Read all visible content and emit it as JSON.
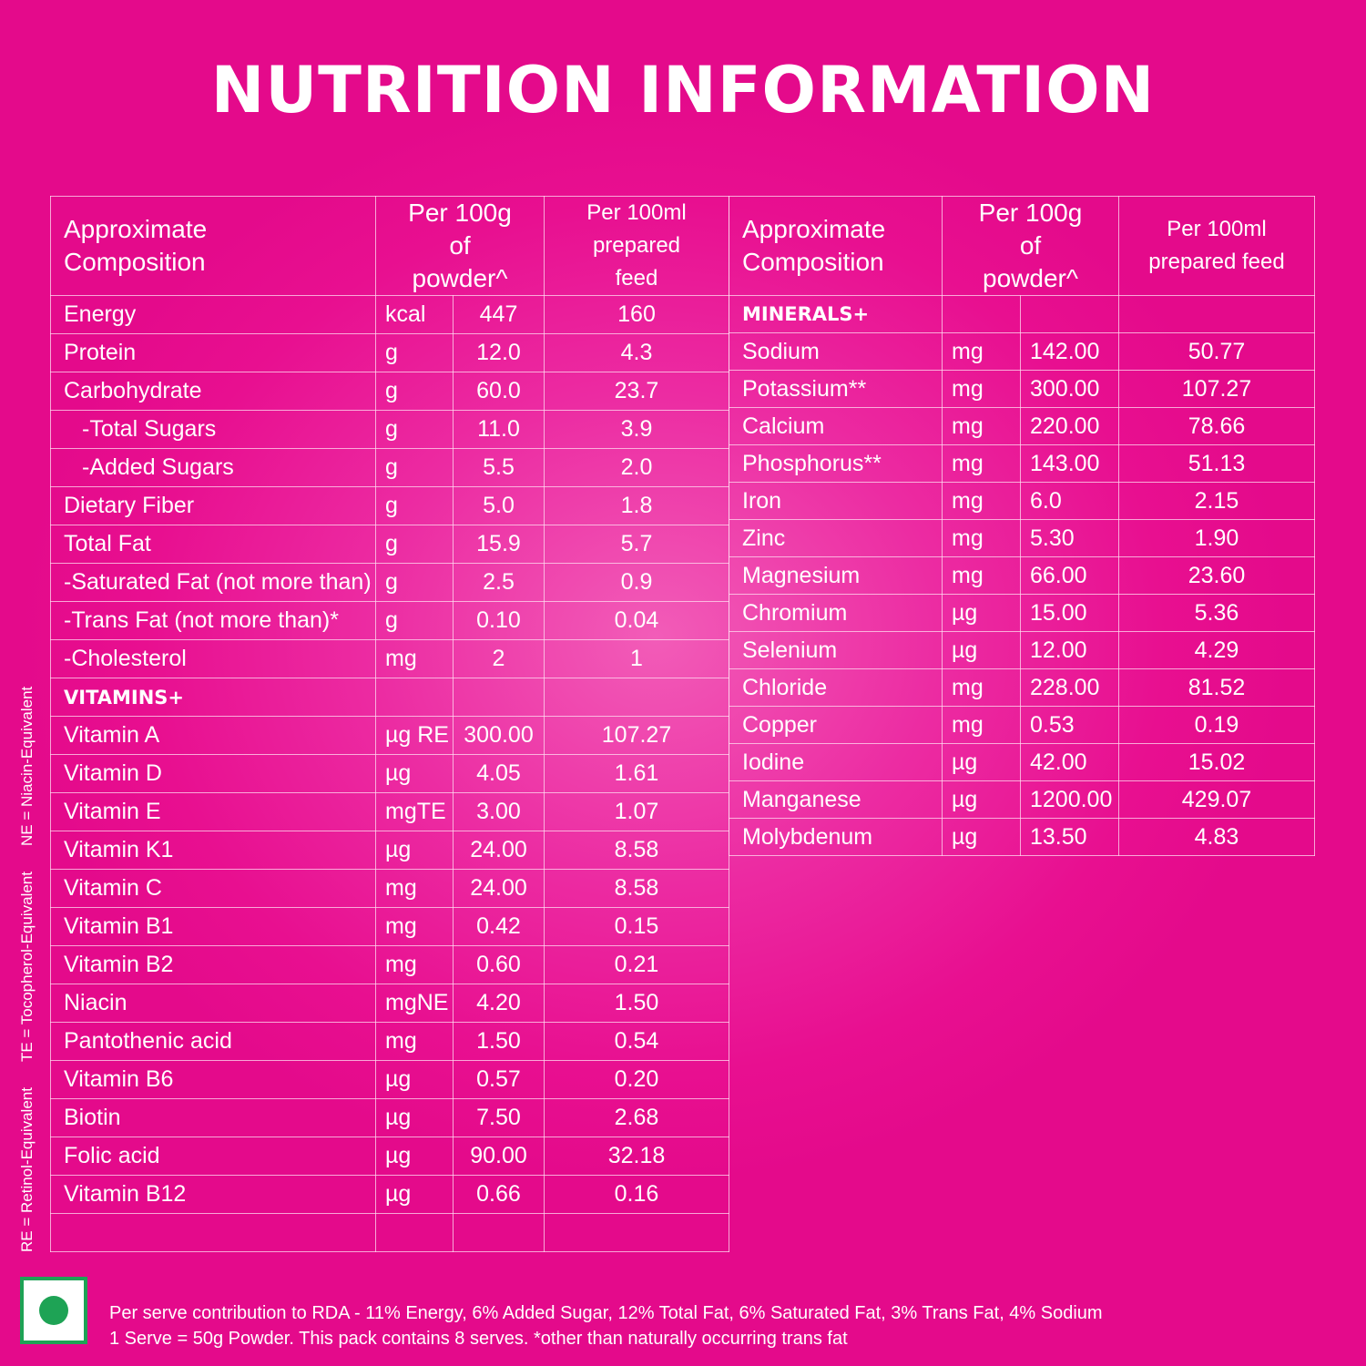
{
  "title": "NUTRITION INFORMATION",
  "headers": {
    "composition": "Approximate Composition",
    "per100g": "Per 100g of powder^",
    "per100ml": "Per 100ml prepared feed"
  },
  "left_rows": [
    {
      "name": "Energy",
      "unit": "kcal",
      "per100g": "447",
      "per100ml": "160"
    },
    {
      "name": "Protein",
      "unit": "g",
      "per100g": "12.0",
      "per100ml": "4.3"
    },
    {
      "name": "Carbohydrate",
      "unit": "g",
      "per100g": "60.0",
      "per100ml": "23.7"
    },
    {
      "name": "-Total Sugars",
      "unit": "g",
      "per100g": "11.0",
      "per100ml": "3.9",
      "indent": true
    },
    {
      "name": "-Added Sugars",
      "unit": "g",
      "per100g": "5.5",
      "per100ml": "2.0",
      "indent": true
    },
    {
      "name": "Dietary Fiber",
      "unit": "g",
      "per100g": "5.0",
      "per100ml": "1.8"
    },
    {
      "name": "Total Fat",
      "unit": "g",
      "per100g": "15.9",
      "per100ml": "5.7"
    },
    {
      "name": "-Saturated Fat (not more than)",
      "unit": "g",
      "per100g": "2.5",
      "per100ml": "0.9"
    },
    {
      "name": "-Trans Fat (not more than)*",
      "unit": "g",
      "per100g": "0.10",
      "per100ml": "0.04"
    },
    {
      "name": "-Cholesterol",
      "unit": "mg",
      "per100g": "2",
      "per100ml": "1"
    },
    {
      "name": "VITAMINS+",
      "unit": "",
      "per100g": "",
      "per100ml": "",
      "section": true
    },
    {
      "name": "Vitamin A",
      "unit": "µg RE",
      "per100g": "300.00",
      "per100ml": "107.27"
    },
    {
      "name": "Vitamin D",
      "unit": "µg",
      "per100g": "4.05",
      "per100ml": "1.61"
    },
    {
      "name": "Vitamin E",
      "unit": "mgTE",
      "per100g": "3.00",
      "per100ml": "1.07"
    },
    {
      "name": "Vitamin K1",
      "unit": "µg",
      "per100g": "24.00",
      "per100ml": "8.58"
    },
    {
      "name": "Vitamin C",
      "unit": "mg",
      "per100g": "24.00",
      "per100ml": "8.58"
    },
    {
      "name": "Vitamin B1",
      "unit": "mg",
      "per100g": "0.42",
      "per100ml": "0.15"
    },
    {
      "name": "Vitamin B2",
      "unit": "mg",
      "per100g": "0.60",
      "per100ml": "0.21"
    },
    {
      "name": "Niacin",
      "unit": "mgNE",
      "per100g": "4.20",
      "per100ml": "1.50"
    },
    {
      "name": "Pantothenic acid",
      "unit": "mg",
      "per100g": "1.50",
      "per100ml": "0.54"
    },
    {
      "name": "Vitamin B6",
      "unit": "µg",
      "per100g": "0.57",
      "per100ml": "0.20"
    },
    {
      "name": "Biotin",
      "unit": "µg",
      "per100g": "7.50",
      "per100ml": "2.68"
    },
    {
      "name": "Folic acid",
      "unit": "µg",
      "per100g": "90.00",
      "per100ml": "32.18"
    },
    {
      "name": "Vitamin B12",
      "unit": "µg",
      "per100g": "0.66",
      "per100ml": "0.16"
    },
    {
      "name": "",
      "unit": "",
      "per100g": "",
      "per100ml": ""
    }
  ],
  "right_rows": [
    {
      "name": "MINERALS+",
      "unit": "",
      "per100g": "",
      "per100ml": "",
      "section": true
    },
    {
      "name": "Sodium",
      "unit": "mg",
      "per100g": "142.00",
      "per100ml": "50.77"
    },
    {
      "name": "Potassium**",
      "unit": "mg",
      "per100g": "300.00",
      "per100ml": "107.27"
    },
    {
      "name": "Calcium",
      "unit": "mg",
      "per100g": "220.00",
      "per100ml": "78.66"
    },
    {
      "name": "Phosphorus**",
      "unit": "mg",
      "per100g": "143.00",
      "per100ml": "51.13"
    },
    {
      "name": "Iron",
      "unit": "mg",
      "per100g": "6.0",
      "per100ml": "2.15"
    },
    {
      "name": "Zinc",
      "unit": "mg",
      "per100g": "5.30",
      "per100ml": "1.90"
    },
    {
      "name": "Magnesium",
      "unit": "mg",
      "per100g": "66.00",
      "per100ml": "23.60"
    },
    {
      "name": "Chromium",
      "unit": "µg",
      "per100g": "15.00",
      "per100ml": "5.36"
    },
    {
      "name": "Selenium",
      "unit": "µg",
      "per100g": "12.00",
      "per100ml": "4.29"
    },
    {
      "name": "Chloride",
      "unit": "mg",
      "per100g": "228.00",
      "per100ml": "81.52"
    },
    {
      "name": "Copper",
      "unit": "mg",
      "per100g": "0.53",
      "per100ml": "0.19"
    },
    {
      "name": "Iodine",
      "unit": "µg",
      "per100g": "42.00",
      "per100ml": "15.02"
    },
    {
      "name": "Manganese",
      "unit": "µg",
      "per100g": "1200.00",
      "per100ml": "429.07"
    },
    {
      "name": "Molybdenum",
      "unit": "µg",
      "per100g": "13.50",
      "per100ml": "4.83"
    }
  ],
  "side_notes": [
    "RE = Retinol-Equivalent",
    "TE = Tocopherol-Equivalent",
    "NE = Niacin-Equivalent"
  ],
  "footer": {
    "line1": "Per serve contribution to RDA - 11% Energy, 6% Added Sugar, 12% Total Fat, 6% Saturated Fat, 3% Trans Fat, 4% Sodium",
    "line2": "1 Serve = 50g Powder. This pack contains 8 serves. *other than naturally occurring trans fat"
  },
  "colors": {
    "background": "#e80f90",
    "veg_mark": "#1ea355"
  },
  "icons": {
    "veg_mark": "vegetarian-symbol-icon"
  }
}
